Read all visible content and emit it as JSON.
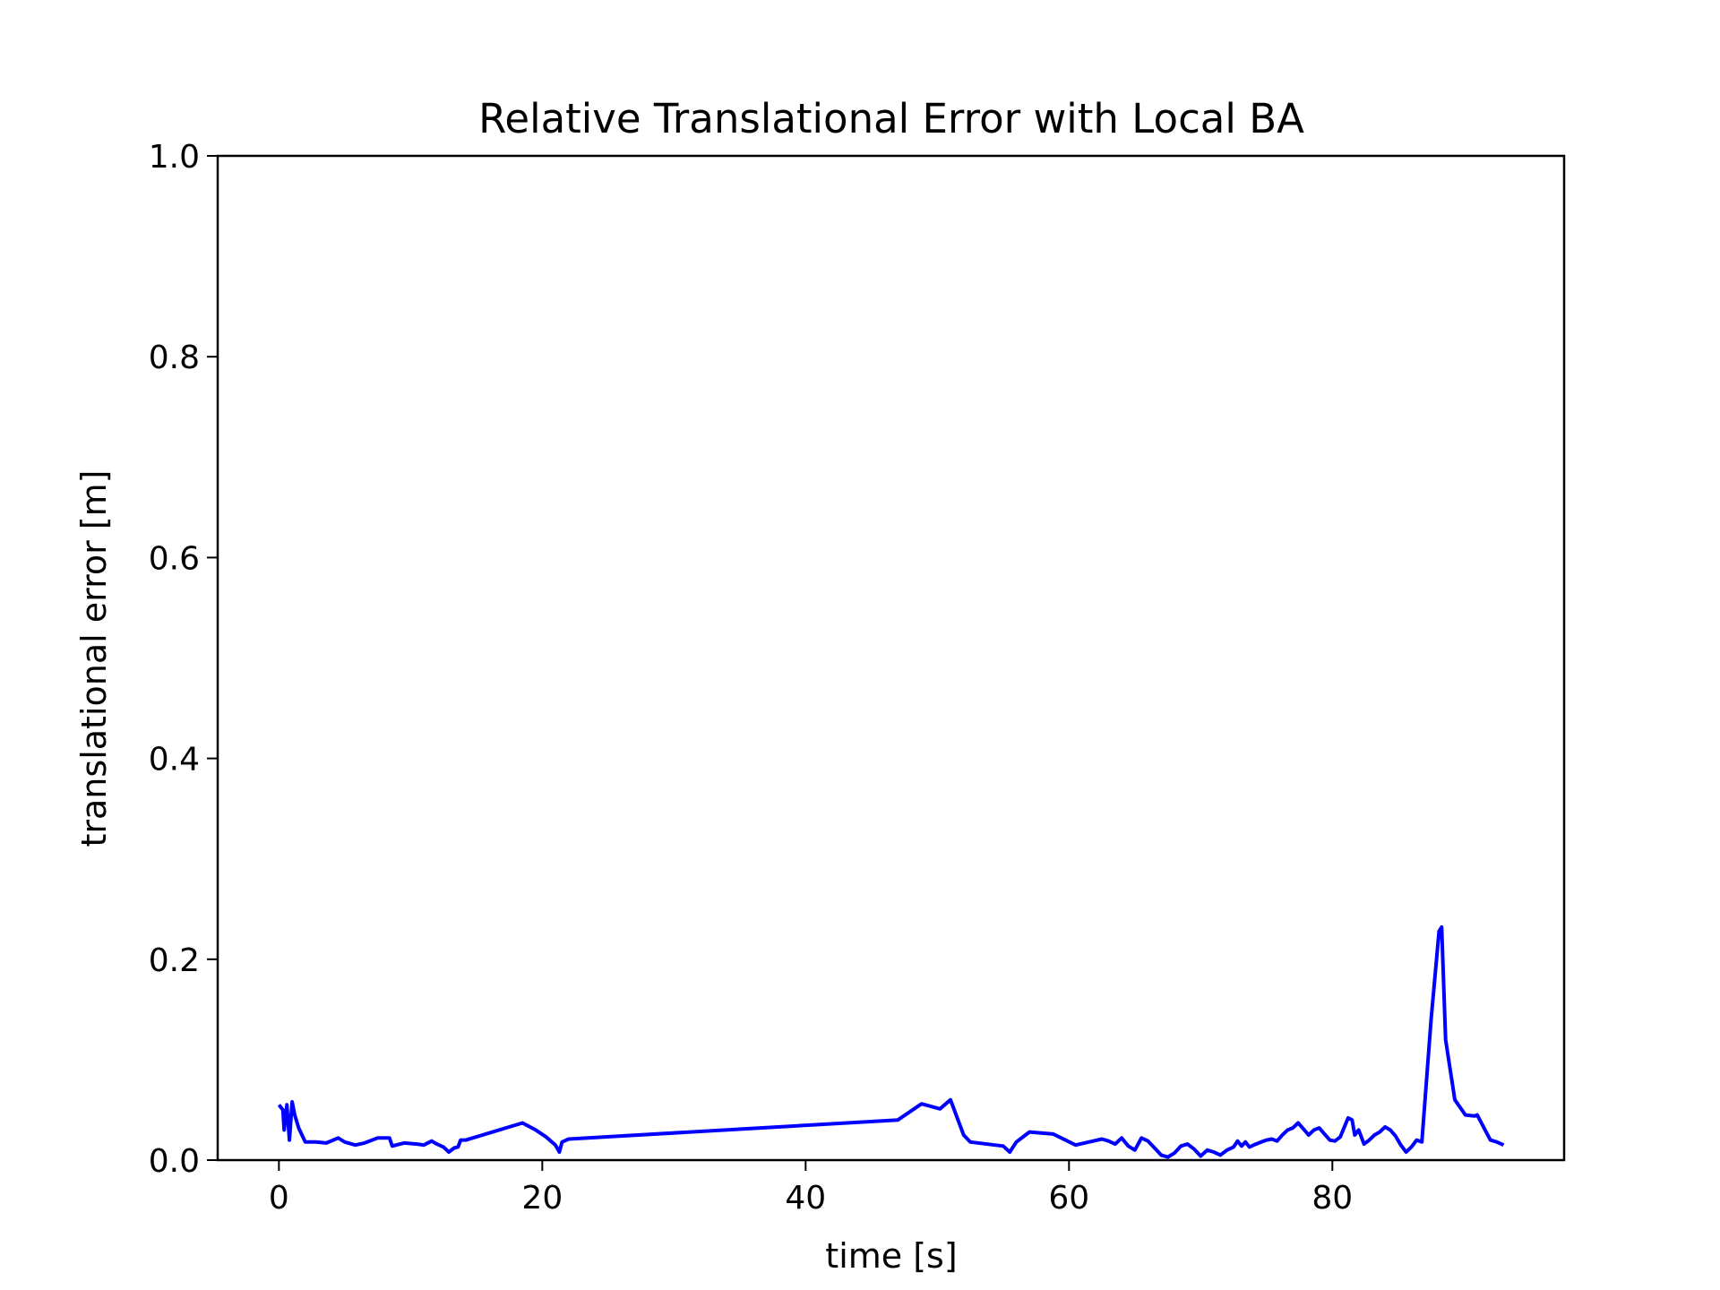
{
  "chart_data": {
    "type": "line",
    "title": "Relative Translational Error with Local BA",
    "xlabel": "time [s]",
    "ylabel": "translational error [m]",
    "xlim": [
      -4.65,
      97.6
    ],
    "ylim": [
      0.0,
      1.0
    ],
    "xticks": [
      0,
      20,
      40,
      60,
      80
    ],
    "xtick_labels": [
      "0",
      "20",
      "40",
      "60",
      "80"
    ],
    "yticks": [
      0.0,
      0.2,
      0.4,
      0.6,
      0.8,
      1.0
    ],
    "ytick_labels": [
      "0.0",
      "0.2",
      "0.4",
      "0.6",
      "0.8",
      "1.0"
    ],
    "grid": false,
    "line_color": "#0000ff",
    "series": [
      {
        "x": [
          0.0,
          0.3,
          0.4,
          0.6,
          0.8,
          1.0,
          1.2,
          1.5,
          2.0,
          2.8,
          3.6,
          4.5,
          5.0,
          5.8,
          6.5,
          7.5,
          8.4,
          8.6,
          9.5,
          10.5,
          11.0,
          11.6,
          12.0,
          12.5,
          12.9,
          13.3,
          13.6,
          13.8,
          14.2,
          18.5,
          19.5,
          20.3,
          21.0,
          21.3,
          21.5,
          22.0,
          47.0,
          48.8,
          50.2,
          51.0,
          52.0,
          52.5,
          55.0,
          55.5,
          56.0,
          57.0,
          58.8,
          60.5,
          61.5,
          62.5,
          63.0,
          63.5,
          64.0,
          64.5,
          65.0,
          65.5,
          66.0,
          66.5,
          67.0,
          67.5,
          68.0,
          68.5,
          69.0,
          69.5,
          70.0,
          70.5,
          71.0,
          71.5,
          72.0,
          72.5,
          72.8,
          73.1,
          73.4,
          73.7,
          74.2,
          74.6,
          75.0,
          75.4,
          75.8,
          76.2,
          76.6,
          77.0,
          77.4,
          77.8,
          78.2,
          78.6,
          79.0,
          79.4,
          79.8,
          80.2,
          80.6,
          81.2,
          81.5,
          81.7,
          82.0,
          82.4,
          82.8,
          83.2,
          83.6,
          84.0,
          84.4,
          84.8,
          85.2,
          85.6,
          86.0,
          86.4,
          86.8,
          87.5,
          88.1,
          88.3,
          88.6,
          89.3,
          90.1,
          90.8,
          91.0,
          91.6,
          92.0,
          92.5,
          93.0
        ],
        "y": [
          0.055,
          0.05,
          0.03,
          0.055,
          0.02,
          0.058,
          0.045,
          0.032,
          0.018,
          0.018,
          0.017,
          0.022,
          0.018,
          0.015,
          0.017,
          0.022,
          0.022,
          0.014,
          0.017,
          0.016,
          0.015,
          0.019,
          0.016,
          0.013,
          0.008,
          0.012,
          0.013,
          0.02,
          0.02,
          0.037,
          0.03,
          0.023,
          0.015,
          0.008,
          0.018,
          0.021,
          0.04,
          0.056,
          0.051,
          0.06,
          0.025,
          0.018,
          0.014,
          0.008,
          0.018,
          0.028,
          0.026,
          0.015,
          0.018,
          0.021,
          0.019,
          0.016,
          0.022,
          0.014,
          0.01,
          0.022,
          0.019,
          0.012,
          0.005,
          0.003,
          0.007,
          0.014,
          0.016,
          0.011,
          0.004,
          0.01,
          0.008,
          0.005,
          0.01,
          0.013,
          0.019,
          0.014,
          0.018,
          0.013,
          0.016,
          0.018,
          0.02,
          0.021,
          0.019,
          0.025,
          0.03,
          0.032,
          0.037,
          0.031,
          0.025,
          0.03,
          0.032,
          0.026,
          0.02,
          0.019,
          0.023,
          0.042,
          0.04,
          0.025,
          0.03,
          0.016,
          0.02,
          0.025,
          0.028,
          0.033,
          0.03,
          0.024,
          0.015,
          0.008,
          0.013,
          0.02,
          0.018,
          0.14,
          0.228,
          0.232,
          0.12,
          0.06,
          0.045,
          0.044,
          0.045,
          0.03,
          0.02,
          0.018,
          0.015
        ]
      }
    ]
  }
}
